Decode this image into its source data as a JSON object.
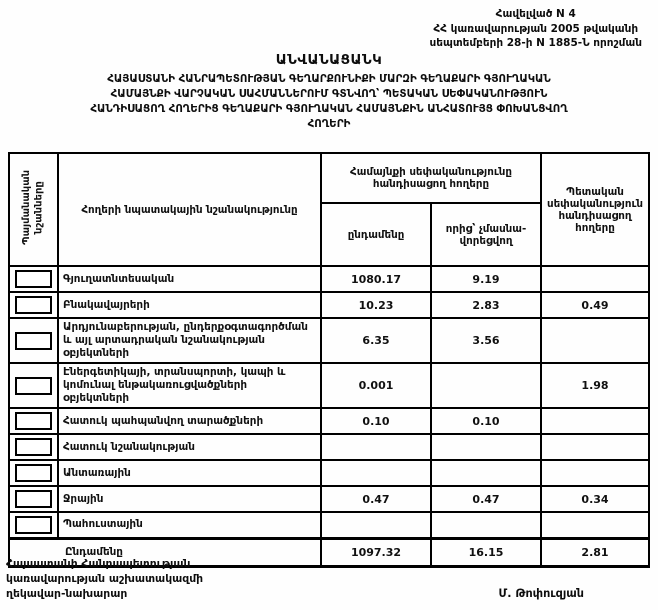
{
  "appendix": {
    "line1": "Հավելված N 4",
    "line2": "ՀՀ կառավարության 2005 թվականի",
    "line3": "սեպտեմբերի 28-ի N 1885-Ն որոշման"
  },
  "title": "ԱՆՎԱՆԱՑԱՆԿ",
  "subtitle": {
    "line1": "ՀԱՅԱՍՏԱՆԻ ՀԱՆՐԱՊԵՏՈՒԹՅԱՆ ԳԵՂԱՐՔՈՒՆԻՔԻ ՄԱՐԶԻ ԳԵՂԱՔԱՐԻ ԳՅՈՒՂԱԿԱՆ",
    "line2": "ՀԱՄԱՅՆՔԻ ՎԱՐՉԱԿԱՆ ՍԱՀՄԱՆՆԵՐՈՒՄ ԳՏՆՎՈՂ՝ ՊԵՏԱԿԱՆ ՍԵՓԱԿԱՆՈՒԹՅՈՒՆ",
    "line3": "ՀԱՆԴԻՍԱՑՈՂ ՀՈՂԵՐԻՑ ԳԵՂԱՔԱՐԻ ԳՅՈՒՂԱԿԱՆ ՀԱՄԱՅՆՔԻՆ ԱՆՀԱՏՈՒՅՑ ՓՈԽԱՆՑՎՈՂ",
    "line4": "ՀՈՂԵՐԻ"
  },
  "table": {
    "headers": {
      "symbols": "Պայմանական նշանները",
      "purpose": "Հողերի  նպատակային նշանակությունը",
      "community_group": "Համայնքի սեփականությունը հանդիսացող հողերը",
      "total": "ընդամենը",
      "non_privatized": "որից՝ չմասնա­վորեցվող",
      "state": "Պետական սեփականություն հանդիսացող հողերը"
    },
    "rows": [
      {
        "label": "Գյուղատնտեսական",
        "total": "1080.17",
        "non_privatized": "9.19",
        "state": ""
      },
      {
        "label": "Բնակավայրերի",
        "total": "10.23",
        "non_privatized": "2.83",
        "state": "0.49"
      },
      {
        "label": "Արդյունաբերության, ընդերքօգտագործման և այլ արտադրական  նշանակության օբյեկտների",
        "total": "6.35",
        "non_privatized": "3.56",
        "state": ""
      },
      {
        "label": "Էներգետիկայի, տրանսպորտի, կապի և կոմունալ ենթակառուցվածքների  օբյեկտների",
        "total": "0.001",
        "non_privatized": "",
        "state": "1.98"
      },
      {
        "label": "Հատուկ պահպանվող տարածքների",
        "total": "0.10",
        "non_privatized": "0.10",
        "state": ""
      },
      {
        "label": "Հատուկ նշանակության",
        "total": "",
        "non_privatized": "",
        "state": ""
      },
      {
        "label": "Անտառային",
        "total": "",
        "non_privatized": "",
        "state": ""
      },
      {
        "label": "Ջրային",
        "total": "0.47",
        "non_privatized": "0.47",
        "state": "0.34"
      },
      {
        "label": "Պահուստային",
        "total": "",
        "non_privatized": "",
        "state": ""
      }
    ],
    "total_row": {
      "label": "Ընդամենը",
      "total": "1097.32",
      "non_privatized": "16.15",
      "state": "2.81"
    }
  },
  "footer": {
    "line1": "Հայաստանի Հանրապետության",
    "line2": "կառավարության աշխատակազմի",
    "line3": "ղեկավար-նախարար",
    "signature": "Մ. Թոփուզյան"
  }
}
